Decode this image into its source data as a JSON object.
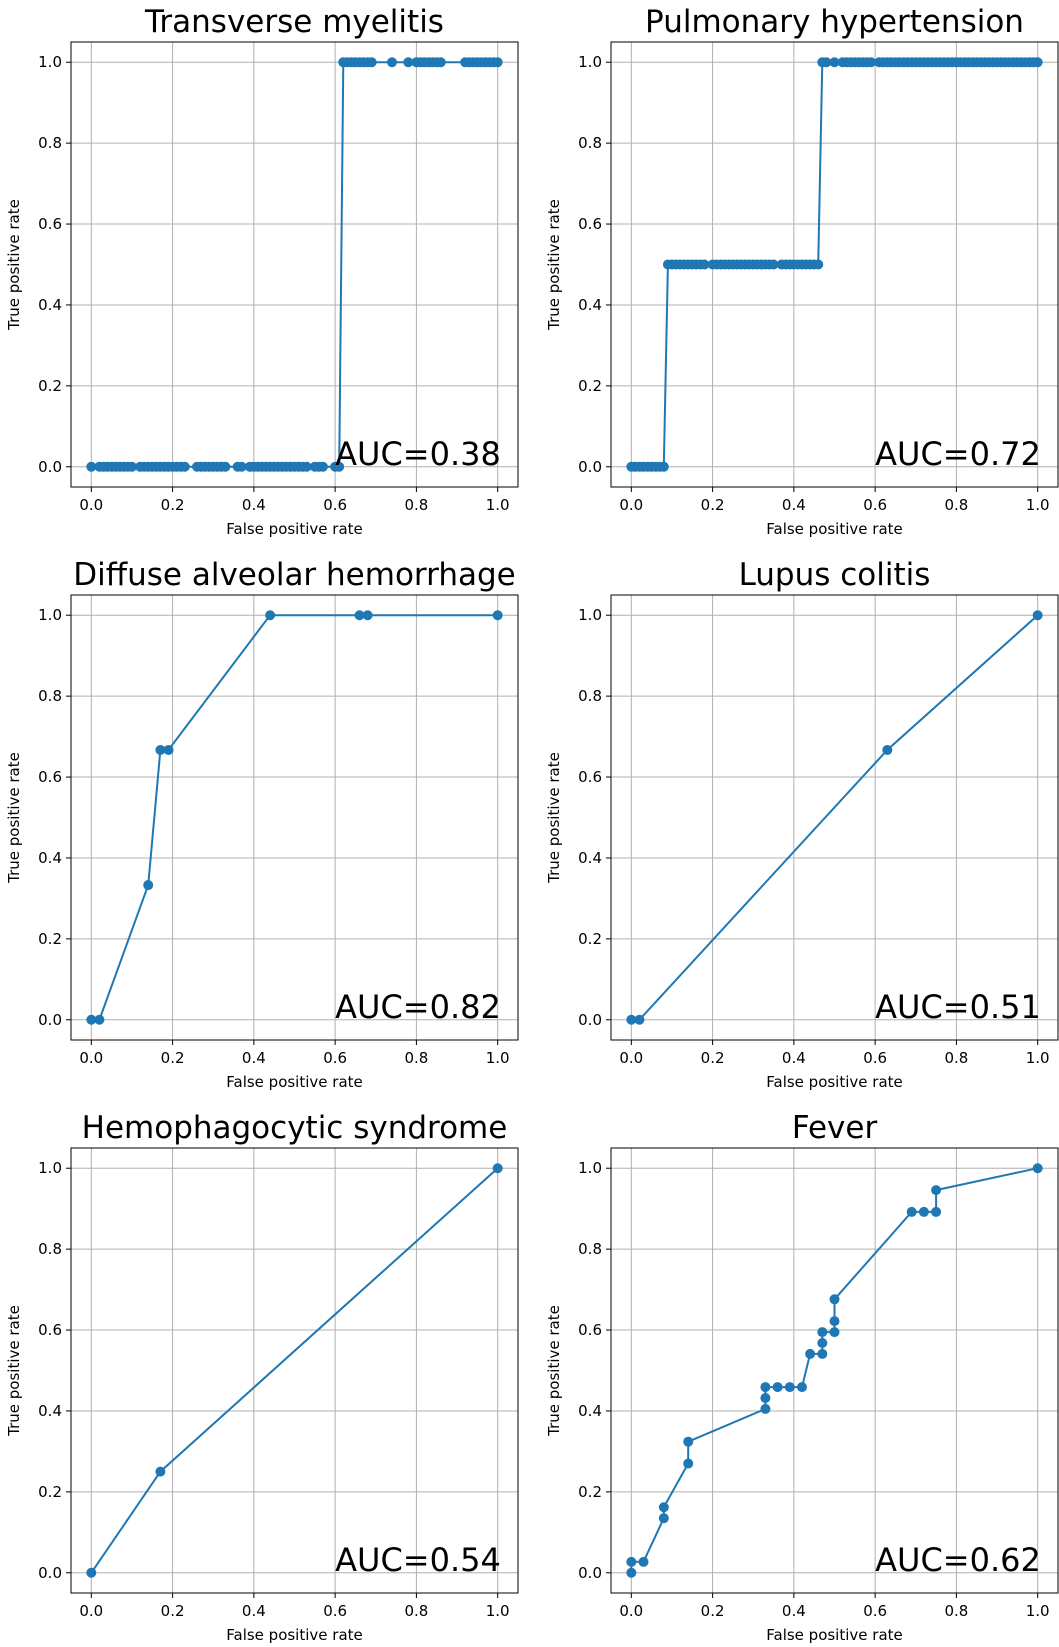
{
  "chart_data": [
    {
      "type": "line",
      "title": "Transverse myelitis",
      "xlabel": "False positive rate",
      "ylabel": "True positive rate",
      "annotation": "AUC=0.38",
      "xlim": [
        -0.05,
        1.05
      ],
      "ylim": [
        -0.05,
        1.05
      ],
      "xticks": [
        "0.0",
        "0.2",
        "0.4",
        "0.6",
        "0.8",
        "1.0"
      ],
      "yticks": [
        "0.0",
        "0.2",
        "0.4",
        "0.6",
        "0.8",
        "1.0"
      ],
      "grid": true,
      "color": "#1f77b4",
      "x": [
        0.0,
        0.02,
        0.03,
        0.04,
        0.05,
        0.06,
        0.07,
        0.08,
        0.09,
        0.1,
        0.12,
        0.13,
        0.14,
        0.15,
        0.16,
        0.17,
        0.18,
        0.19,
        0.2,
        0.21,
        0.22,
        0.23,
        0.26,
        0.27,
        0.28,
        0.29,
        0.3,
        0.31,
        0.32,
        0.33,
        0.36,
        0.37,
        0.39,
        0.4,
        0.41,
        0.42,
        0.43,
        0.44,
        0.45,
        0.46,
        0.47,
        0.48,
        0.49,
        0.5,
        0.51,
        0.52,
        0.53,
        0.55,
        0.56,
        0.57,
        0.6,
        0.61,
        0.62,
        0.63,
        0.64,
        0.65,
        0.66,
        0.67,
        0.68,
        0.69,
        0.74,
        0.78,
        0.8,
        0.81,
        0.82,
        0.83,
        0.84,
        0.85,
        0.86,
        0.92,
        0.93,
        0.94,
        0.95,
        0.96,
        0.97,
        0.98,
        0.99,
        1.0
      ],
      "y": [
        0.0,
        0.0,
        0.0,
        0.0,
        0.0,
        0.0,
        0.0,
        0.0,
        0.0,
        0.0,
        0.0,
        0.0,
        0.0,
        0.0,
        0.0,
        0.0,
        0.0,
        0.0,
        0.0,
        0.0,
        0.0,
        0.0,
        0.0,
        0.0,
        0.0,
        0.0,
        0.0,
        0.0,
        0.0,
        0.0,
        0.0,
        0.0,
        0.0,
        0.0,
        0.0,
        0.0,
        0.0,
        0.0,
        0.0,
        0.0,
        0.0,
        0.0,
        0.0,
        0.0,
        0.0,
        0.0,
        0.0,
        0.0,
        0.0,
        0.0,
        0.0,
        0.0,
        1.0,
        1.0,
        1.0,
        1.0,
        1.0,
        1.0,
        1.0,
        1.0,
        1.0,
        1.0,
        1.0,
        1.0,
        1.0,
        1.0,
        1.0,
        1.0,
        1.0,
        1.0,
        1.0,
        1.0,
        1.0,
        1.0,
        1.0,
        1.0,
        1.0,
        1.0
      ]
    },
    {
      "type": "line",
      "title": "Pulmonary hypertension",
      "xlabel": "False positive rate",
      "ylabel": "True positive rate",
      "annotation": "AUC=0.72",
      "xlim": [
        -0.05,
        1.05
      ],
      "ylim": [
        -0.05,
        1.05
      ],
      "xticks": [
        "0.0",
        "0.2",
        "0.4",
        "0.6",
        "0.8",
        "1.0"
      ],
      "yticks": [
        "0.0",
        "0.2",
        "0.4",
        "0.6",
        "0.8",
        "1.0"
      ],
      "grid": true,
      "color": "#1f77b4",
      "x": [
        0.0,
        0.01,
        0.02,
        0.03,
        0.04,
        0.05,
        0.06,
        0.07,
        0.08,
        0.09,
        0.1,
        0.11,
        0.12,
        0.13,
        0.14,
        0.15,
        0.16,
        0.17,
        0.18,
        0.2,
        0.21,
        0.22,
        0.23,
        0.24,
        0.25,
        0.26,
        0.27,
        0.28,
        0.29,
        0.3,
        0.31,
        0.32,
        0.33,
        0.34,
        0.35,
        0.37,
        0.38,
        0.39,
        0.4,
        0.41,
        0.42,
        0.43,
        0.44,
        0.45,
        0.46,
        0.47,
        0.48,
        0.5,
        0.52,
        0.53,
        0.54,
        0.55,
        0.56,
        0.57,
        0.58,
        0.59,
        0.61,
        0.62,
        0.63,
        0.64,
        0.65,
        0.66,
        0.67,
        0.68,
        0.69,
        0.7,
        0.71,
        0.72,
        0.73,
        0.74,
        0.75,
        0.76,
        0.77,
        0.78,
        0.79,
        0.8,
        0.81,
        0.82,
        0.83,
        0.84,
        0.85,
        0.86,
        0.87,
        0.88,
        0.89,
        0.9,
        0.91,
        0.92,
        0.93,
        0.94,
        0.95,
        0.96,
        0.97,
        0.98,
        0.99,
        1.0
      ],
      "y": [
        0.0,
        0.0,
        0.0,
        0.0,
        0.0,
        0.0,
        0.0,
        0.0,
        0.0,
        0.5,
        0.5,
        0.5,
        0.5,
        0.5,
        0.5,
        0.5,
        0.5,
        0.5,
        0.5,
        0.5,
        0.5,
        0.5,
        0.5,
        0.5,
        0.5,
        0.5,
        0.5,
        0.5,
        0.5,
        0.5,
        0.5,
        0.5,
        0.5,
        0.5,
        0.5,
        0.5,
        0.5,
        0.5,
        0.5,
        0.5,
        0.5,
        0.5,
        0.5,
        0.5,
        0.5,
        1.0,
        1.0,
        1.0,
        1.0,
        1.0,
        1.0,
        1.0,
        1.0,
        1.0,
        1.0,
        1.0,
        1.0,
        1.0,
        1.0,
        1.0,
        1.0,
        1.0,
        1.0,
        1.0,
        1.0,
        1.0,
        1.0,
        1.0,
        1.0,
        1.0,
        1.0,
        1.0,
        1.0,
        1.0,
        1.0,
        1.0,
        1.0,
        1.0,
        1.0,
        1.0,
        1.0,
        1.0,
        1.0,
        1.0,
        1.0,
        1.0,
        1.0,
        1.0,
        1.0,
        1.0,
        1.0,
        1.0,
        1.0,
        1.0,
        1.0,
        1.0
      ]
    },
    {
      "type": "line",
      "title": "Diffuse alveolar hemorrhage",
      "xlabel": "False positive rate",
      "ylabel": "True positive rate",
      "annotation": "AUC=0.82",
      "xlim": [
        -0.05,
        1.05
      ],
      "ylim": [
        -0.05,
        1.05
      ],
      "xticks": [
        "0.0",
        "0.2",
        "0.4",
        "0.6",
        "0.8",
        "1.0"
      ],
      "yticks": [
        "0.0",
        "0.2",
        "0.4",
        "0.6",
        "0.8",
        "1.0"
      ],
      "grid": true,
      "color": "#1f77b4",
      "x": [
        0.0,
        0.02,
        0.14,
        0.17,
        0.19,
        0.44,
        0.66,
        0.68,
        1.0
      ],
      "y": [
        0.0,
        0.0,
        0.333,
        0.667,
        0.667,
        1.0,
        1.0,
        1.0,
        1.0
      ]
    },
    {
      "type": "line",
      "title": "Lupus colitis",
      "xlabel": "False positive rate",
      "ylabel": "True positive rate",
      "annotation": "AUC=0.51",
      "xlim": [
        -0.05,
        1.05
      ],
      "ylim": [
        -0.05,
        1.05
      ],
      "xticks": [
        "0.0",
        "0.2",
        "0.4",
        "0.6",
        "0.8",
        "1.0"
      ],
      "yticks": [
        "0.0",
        "0.2",
        "0.4",
        "0.6",
        "0.8",
        "1.0"
      ],
      "grid": true,
      "color": "#1f77b4",
      "x": [
        0.0,
        0.02,
        0.63,
        1.0
      ],
      "y": [
        0.0,
        0.0,
        0.667,
        1.0
      ]
    },
    {
      "type": "line",
      "title": "Hemophagocytic syndrome",
      "xlabel": "False positive rate",
      "ylabel": "True positive rate",
      "annotation": "AUC=0.54",
      "xlim": [
        -0.05,
        1.05
      ],
      "ylim": [
        -0.05,
        1.05
      ],
      "xticks": [
        "0.0",
        "0.2",
        "0.4",
        "0.6",
        "0.8",
        "1.0"
      ],
      "yticks": [
        "0.0",
        "0.2",
        "0.4",
        "0.6",
        "0.8",
        "1.0"
      ],
      "grid": true,
      "color": "#1f77b4",
      "x": [
        0.0,
        0.17,
        1.0
      ],
      "y": [
        0.0,
        0.25,
        1.0
      ]
    },
    {
      "type": "line",
      "title": "Fever",
      "xlabel": "False positive rate",
      "ylabel": "True positive rate",
      "annotation": "AUC=0.62",
      "xlim": [
        -0.05,
        1.05
      ],
      "ylim": [
        -0.05,
        1.05
      ],
      "xticks": [
        "0.0",
        "0.2",
        "0.4",
        "0.6",
        "0.8",
        "1.0"
      ],
      "yticks": [
        "0.0",
        "0.2",
        "0.4",
        "0.6",
        "0.8",
        "1.0"
      ],
      "grid": true,
      "color": "#1f77b4",
      "x": [
        0.0,
        0.0,
        0.03,
        0.08,
        0.08,
        0.14,
        0.14,
        0.33,
        0.33,
        0.33,
        0.36,
        0.39,
        0.42,
        0.44,
        0.47,
        0.47,
        0.47,
        0.5,
        0.5,
        0.5,
        0.69,
        0.72,
        0.75,
        0.75,
        1.0
      ],
      "y": [
        0.0,
        0.027,
        0.027,
        0.135,
        0.162,
        0.27,
        0.324,
        0.405,
        0.432,
        0.459,
        0.459,
        0.459,
        0.459,
        0.541,
        0.541,
        0.568,
        0.595,
        0.595,
        0.622,
        0.676,
        0.892,
        0.892,
        0.892,
        0.946,
        1.0
      ]
    }
  ]
}
